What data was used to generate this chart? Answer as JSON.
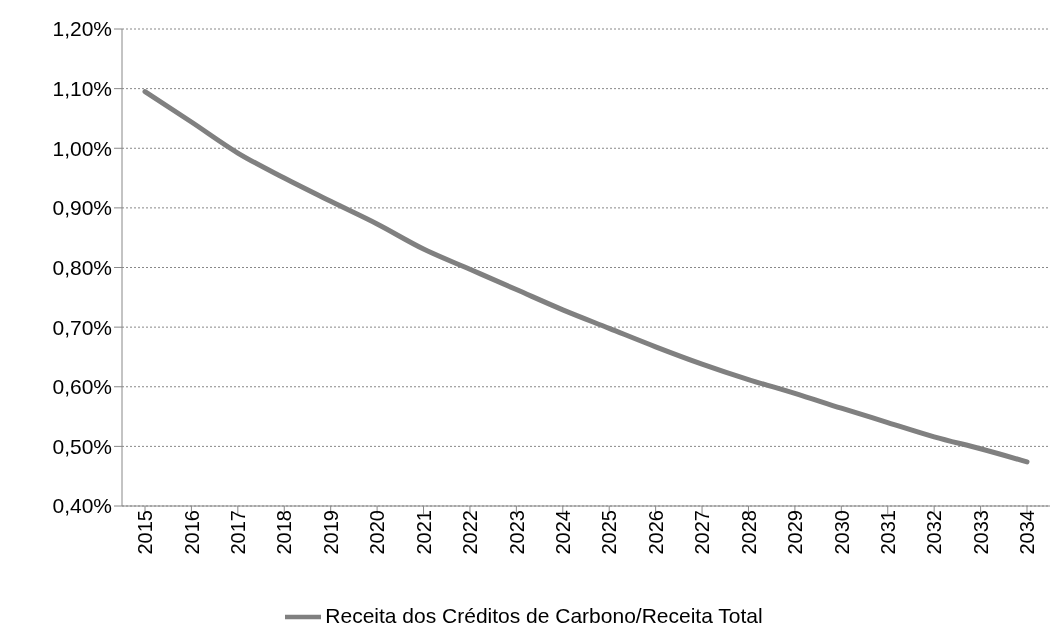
{
  "chart_data": {
    "type": "line",
    "categories": [
      "2015",
      "2016",
      "2017",
      "2018",
      "2019",
      "2020",
      "2021",
      "2022",
      "2023",
      "2024",
      "2025",
      "2026",
      "2027",
      "2028",
      "2029",
      "2030",
      "2031",
      "2032",
      "2033",
      "2034"
    ],
    "series": [
      {
        "name": "Receita dos Créditos de Carbono/Receita Total",
        "color": "#808080",
        "values": [
          1.095,
          1.044,
          0.992,
          0.95,
          0.911,
          0.873,
          0.831,
          0.797,
          0.763,
          0.729,
          0.698,
          0.667,
          0.638,
          0.612,
          0.589,
          0.564,
          0.54,
          0.516,
          0.496,
          0.474
        ]
      }
    ],
    "ylim": [
      0.4,
      1.2
    ],
    "yticks": [
      {
        "value": 0.4,
        "label": "0,40%"
      },
      {
        "value": 0.5,
        "label": "0,50%"
      },
      {
        "value": 0.6,
        "label": "0,60%"
      },
      {
        "value": 0.7,
        "label": "0,70%"
      },
      {
        "value": 0.8,
        "label": "0,80%"
      },
      {
        "value": 0.9,
        "label": "0,90%"
      },
      {
        "value": 1.0,
        "label": "1,00%"
      },
      {
        "value": 1.1,
        "label": "1,10%"
      },
      {
        "value": 1.2,
        "label": "1,20%"
      }
    ],
    "grid": "y",
    "legend": "bottom",
    "marker": "none",
    "line_style": "solid"
  }
}
